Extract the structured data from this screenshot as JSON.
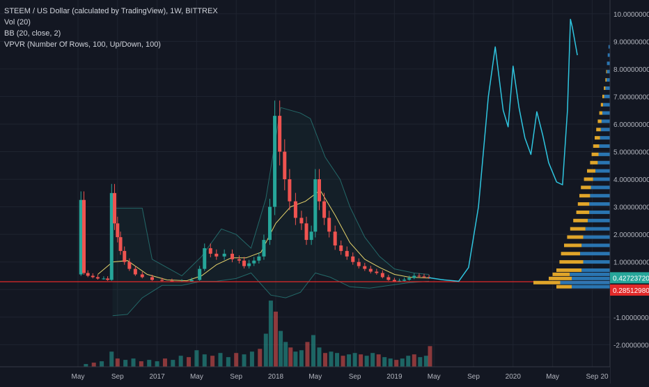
{
  "legend": {
    "title": "STEEM / US Dollar (calculated by TradingView), 1W, BITTREX",
    "vol": "Vol (20)",
    "bb": "BB (20, close, 2)",
    "vpvr": "VPVR (Number Of Rows, 100, Up/Down, 100)"
  },
  "colors": {
    "background": "#131722",
    "grid": "#1f2430",
    "up": "#26a69a",
    "down": "#ef5350",
    "bb_basis": "#e5d36b",
    "bb_band": "#2b8a86",
    "drawing": "#2fc6e0",
    "vpvr_up": "#2e7fc1",
    "vpvr_down": "#e0a52a",
    "axis_text": "#b2b5be",
    "current_price_bg": "#26a69a",
    "hline_price_bg": "#e22a2a"
  },
  "chart_data": {
    "type": "candlestick",
    "symbol": "STEEM / US Dollar (calculated by TradingView), 1W, BITTREX",
    "y_ticks": [
      "10.00000000",
      "9.00000000",
      "8.00000000",
      "7.00000000",
      "6.00000000",
      "5.00000000",
      "4.00000000",
      "3.00000000",
      "2.00000000",
      "1.00000000",
      "-1.00000000",
      "-2.00000000"
    ],
    "y_tick_values": [
      10,
      9,
      8,
      7,
      6,
      5,
      4,
      3,
      2,
      1,
      -1,
      -2
    ],
    "ylim": [
      -2.8,
      10.5
    ],
    "x_ticks": [
      "May",
      "Sep",
      "2017",
      "May",
      "Sep",
      "2018",
      "May",
      "Sep",
      "2019",
      "May",
      "Sep",
      "2020",
      "May",
      "Sep",
      "20"
    ],
    "x_tick_months": [
      0,
      4,
      8,
      12,
      16,
      20,
      24,
      28,
      32,
      36,
      40,
      44,
      48,
      52,
      56
    ],
    "current_price": "0.42723720",
    "current_price_value": 0.4272,
    "horizontal_line": "0.28512980",
    "horizontal_line_value": 0.2851,
    "price_path": [
      [
        0.0,
        0.55
      ],
      [
        0.3,
        3.25
      ],
      [
        0.6,
        0.6
      ],
      [
        1.0,
        0.5
      ],
      [
        1.5,
        0.45
      ],
      [
        2.0,
        0.4
      ],
      [
        2.6,
        0.4
      ],
      [
        3.0,
        0.35
      ],
      [
        3.4,
        3.5
      ],
      [
        3.7,
        2.4
      ],
      [
        4.0,
        1.9
      ],
      [
        4.3,
        1.4
      ],
      [
        4.7,
        1.0
      ],
      [
        5.2,
        0.75
      ],
      [
        5.8,
        0.55
      ],
      [
        6.5,
        0.45
      ],
      [
        7.5,
        0.35
      ],
      [
        8.5,
        0.32
      ],
      [
        9.5,
        0.3
      ],
      [
        10.5,
        0.3
      ],
      [
        11.5,
        0.35
      ],
      [
        12.3,
        0.75
      ],
      [
        12.8,
        1.5
      ],
      [
        13.4,
        1.3
      ],
      [
        14.0,
        1.2
      ],
      [
        14.8,
        1.3
      ],
      [
        15.6,
        1.1
      ],
      [
        16.3,
        1.05
      ],
      [
        16.8,
        0.85
      ],
      [
        17.3,
        0.95
      ],
      [
        17.8,
        1.05
      ],
      [
        18.3,
        1.2
      ],
      [
        18.8,
        1.8
      ],
      [
        19.4,
        3.0
      ],
      [
        19.9,
        6.3
      ],
      [
        20.4,
        5.0
      ],
      [
        20.9,
        4.0
      ],
      [
        21.4,
        3.2
      ],
      [
        22.0,
        2.6
      ],
      [
        22.6,
        2.4
      ],
      [
        23.1,
        1.8
      ],
      [
        23.6,
        2.1
      ],
      [
        24.0,
        4.0
      ],
      [
        24.4,
        3.2
      ],
      [
        24.9,
        2.6
      ],
      [
        25.4,
        2.1
      ],
      [
        26.0,
        1.6
      ],
      [
        26.6,
        1.4
      ],
      [
        27.2,
        1.2
      ],
      [
        27.8,
        1.0
      ],
      [
        28.4,
        0.85
      ],
      [
        29.0,
        0.75
      ],
      [
        29.6,
        0.65
      ],
      [
        30.2,
        0.6
      ],
      [
        30.8,
        0.45
      ],
      [
        31.4,
        0.35
      ],
      [
        32.0,
        0.3
      ],
      [
        32.5,
        0.32
      ],
      [
        33.0,
        0.36
      ],
      [
        33.5,
        0.42
      ],
      [
        34.0,
        0.5
      ],
      [
        34.5,
        0.48
      ],
      [
        35.0,
        0.45
      ],
      [
        35.5,
        0.43
      ]
    ],
    "bb_basis": [
      [
        2.0,
        0.55
      ],
      [
        3.5,
        1.0
      ],
      [
        5.0,
        1.05
      ],
      [
        7.0,
        0.55
      ],
      [
        9.0,
        0.35
      ],
      [
        11.0,
        0.32
      ],
      [
        12.5,
        0.5
      ],
      [
        14.0,
        0.9
      ],
      [
        15.5,
        1.15
      ],
      [
        17.0,
        1.15
      ],
      [
        18.5,
        1.35
      ],
      [
        20.0,
        2.4
      ],
      [
        21.5,
        3.0
      ],
      [
        23.0,
        3.2
      ],
      [
        24.5,
        3.6
      ],
      [
        26.0,
        2.7
      ],
      [
        27.5,
        1.7
      ],
      [
        29.0,
        1.1
      ],
      [
        30.5,
        0.8
      ],
      [
        32.0,
        0.55
      ],
      [
        33.5,
        0.45
      ],
      [
        35.5,
        0.42
      ]
    ],
    "bb_upper": [
      [
        3.5,
        2.95
      ],
      [
        6.5,
        2.95
      ],
      [
        7.5,
        1.1
      ],
      [
        10.5,
        0.5
      ],
      [
        12.5,
        1.2
      ],
      [
        14.5,
        2.2
      ],
      [
        16.0,
        2.0
      ],
      [
        17.5,
        1.5
      ],
      [
        19.0,
        3.3
      ],
      [
        20.5,
        6.6
      ],
      [
        22.5,
        6.4
      ],
      [
        23.5,
        6.2
      ],
      [
        25.0,
        4.8
      ],
      [
        26.5,
        4.0
      ],
      [
        27.5,
        3.0
      ],
      [
        29.0,
        1.9
      ],
      [
        30.5,
        1.2
      ],
      [
        32.0,
        0.75
      ],
      [
        34.0,
        0.6
      ],
      [
        35.5,
        0.55
      ]
    ],
    "bb_lower": [
      [
        3.5,
        -0.95
      ],
      [
        5.0,
        -0.9
      ],
      [
        6.5,
        -0.3
      ],
      [
        8.5,
        0.15
      ],
      [
        10.5,
        0.15
      ],
      [
        12.5,
        0.3
      ],
      [
        14.0,
        0.3
      ],
      [
        16.0,
        0.4
      ],
      [
        17.5,
        0.6
      ],
      [
        19.5,
        -0.2
      ],
      [
        21.0,
        -0.3
      ],
      [
        22.5,
        -0.1
      ],
      [
        24.0,
        0.6
      ],
      [
        25.5,
        0.45
      ],
      [
        27.5,
        0.1
      ],
      [
        29.5,
        0.05
      ],
      [
        31.5,
        0.15
      ],
      [
        33.5,
        0.25
      ],
      [
        35.5,
        0.3
      ]
    ],
    "volume": [
      [
        0.8,
        0.1
      ],
      [
        1.6,
        0.15
      ],
      [
        2.4,
        0.2
      ],
      [
        3.4,
        0.55
      ],
      [
        4.0,
        0.3
      ],
      [
        4.8,
        0.25
      ],
      [
        5.6,
        0.3
      ],
      [
        6.4,
        0.2
      ],
      [
        7.2,
        0.25
      ],
      [
        8.0,
        0.2
      ],
      [
        8.8,
        0.3
      ],
      [
        9.6,
        0.25
      ],
      [
        10.4,
        0.4
      ],
      [
        11.2,
        0.35
      ],
      [
        12.0,
        0.6
      ],
      [
        12.8,
        0.45
      ],
      [
        13.6,
        0.4
      ],
      [
        14.4,
        0.5
      ],
      [
        15.2,
        0.35
      ],
      [
        16.0,
        0.5
      ],
      [
        16.8,
        0.45
      ],
      [
        17.6,
        0.55
      ],
      [
        18.4,
        0.65
      ],
      [
        19.0,
        1.2
      ],
      [
        19.5,
        2.4
      ],
      [
        20.0,
        2.0
      ],
      [
        20.5,
        1.3
      ],
      [
        21.0,
        0.9
      ],
      [
        21.5,
        0.7
      ],
      [
        22.0,
        0.55
      ],
      [
        22.6,
        0.6
      ],
      [
        23.2,
        0.9
      ],
      [
        23.8,
        1.15
      ],
      [
        24.4,
        0.7
      ],
      [
        25.0,
        0.5
      ],
      [
        25.6,
        0.55
      ],
      [
        26.2,
        0.5
      ],
      [
        26.8,
        0.4
      ],
      [
        27.4,
        0.45
      ],
      [
        28.0,
        0.5
      ],
      [
        28.6,
        0.45
      ],
      [
        29.2,
        0.4
      ],
      [
        29.8,
        0.5
      ],
      [
        30.4,
        0.45
      ],
      [
        31.0,
        0.35
      ],
      [
        31.6,
        0.3
      ],
      [
        32.2,
        0.25
      ],
      [
        32.8,
        0.3
      ],
      [
        33.4,
        0.4
      ],
      [
        34.0,
        0.45
      ],
      [
        34.6,
        0.35
      ],
      [
        35.2,
        0.4
      ],
      [
        35.6,
        0.75
      ]
    ],
    "drawing_path": [
      [
        35.5,
        0.43
      ],
      [
        37.0,
        0.35
      ],
      [
        38.5,
        0.3
      ],
      [
        39.5,
        0.8
      ],
      [
        40.5,
        3.0
      ],
      [
        41.5,
        7.0
      ],
      [
        42.2,
        8.8
      ],
      [
        43.0,
        6.5
      ],
      [
        43.5,
        5.9
      ],
      [
        44.0,
        8.1
      ],
      [
        44.6,
        6.6
      ],
      [
        45.2,
        5.5
      ],
      [
        45.8,
        4.9
      ],
      [
        46.4,
        6.45
      ],
      [
        47.0,
        5.6
      ],
      [
        47.6,
        4.6
      ],
      [
        48.4,
        3.9
      ],
      [
        49.0,
        3.8
      ],
      [
        49.5,
        6.5
      ],
      [
        49.8,
        9.8
      ],
      [
        50.0,
        9.5
      ],
      [
        50.5,
        8.5
      ]
    ],
    "vpvr_rows": [
      [
        8.8,
        0.02,
        0.0
      ],
      [
        8.5,
        0.03,
        0.0
      ],
      [
        8.2,
        0.04,
        0.0
      ],
      [
        7.9,
        0.05,
        0.02
      ],
      [
        7.6,
        0.06,
        0.03
      ],
      [
        7.3,
        0.08,
        0.04
      ],
      [
        7.0,
        0.1,
        0.05
      ],
      [
        6.7,
        0.12,
        0.06
      ],
      [
        6.4,
        0.14,
        0.08
      ],
      [
        6.1,
        0.16,
        0.1
      ],
      [
        5.8,
        0.18,
        0.12
      ],
      [
        5.5,
        0.2,
        0.14
      ],
      [
        5.2,
        0.22,
        0.16
      ],
      [
        4.9,
        0.24,
        0.18
      ],
      [
        4.6,
        0.26,
        0.2
      ],
      [
        4.3,
        0.3,
        0.22
      ],
      [
        4.0,
        0.34,
        0.24
      ],
      [
        3.7,
        0.38,
        0.26
      ],
      [
        3.4,
        0.4,
        0.28
      ],
      [
        3.1,
        0.42,
        0.3
      ],
      [
        2.8,
        0.44,
        0.34
      ],
      [
        2.5,
        0.48,
        0.38
      ],
      [
        2.2,
        0.52,
        0.4
      ],
      [
        1.9,
        0.56,
        0.42
      ],
      [
        1.6,
        0.6,
        0.46
      ],
      [
        1.3,
        0.64,
        0.5
      ],
      [
        1.0,
        0.66,
        0.62
      ],
      [
        0.7,
        0.7,
        0.66
      ],
      [
        0.55,
        0.75,
        0.45
      ],
      [
        0.4,
        0.8,
        0.6
      ],
      [
        0.25,
        1.0,
        0.7
      ],
      [
        0.1,
        0.7,
        0.4
      ]
    ]
  }
}
